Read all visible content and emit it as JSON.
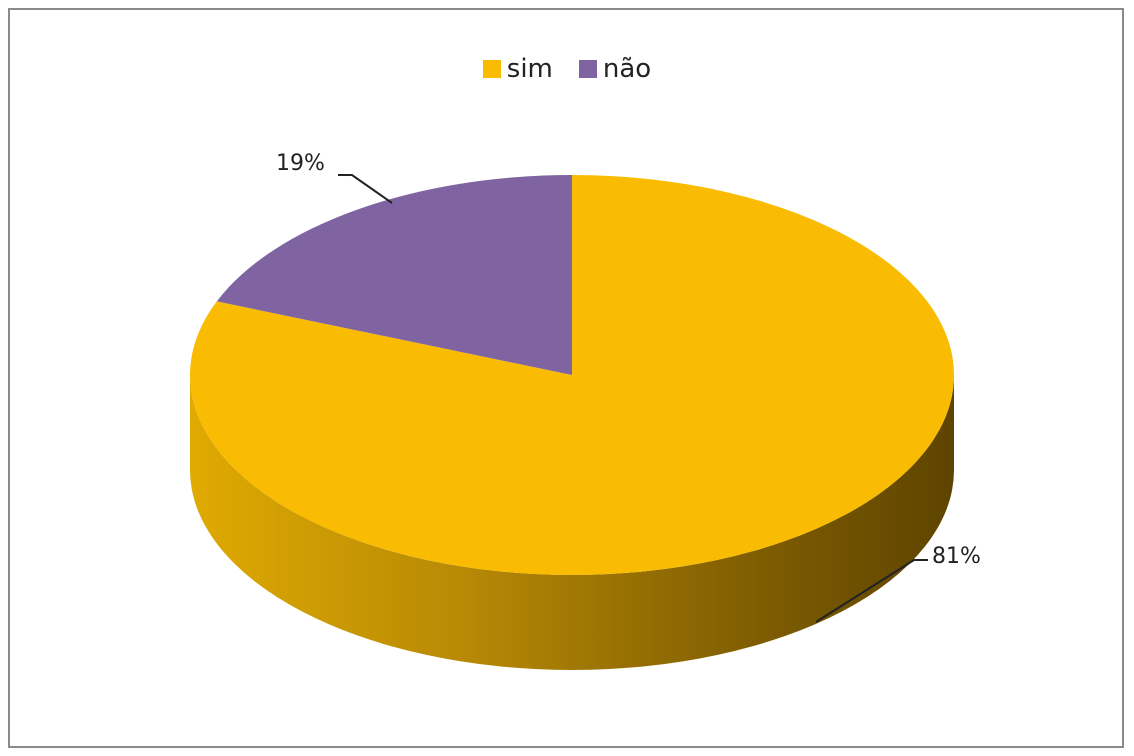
{
  "chart_data": {
    "type": "pie",
    "title": "",
    "categories": [
      "sim",
      "não"
    ],
    "values": [
      81,
      19
    ],
    "labels": [
      "81%",
      "19%"
    ],
    "colors": [
      "#F9BC02",
      "#8064A2"
    ],
    "legend": "top-center",
    "three_d": true
  },
  "legend": {
    "items": [
      {
        "label": "sim",
        "color": "#F9BC02"
      },
      {
        "label": "não",
        "color": "#8064A2"
      }
    ]
  }
}
